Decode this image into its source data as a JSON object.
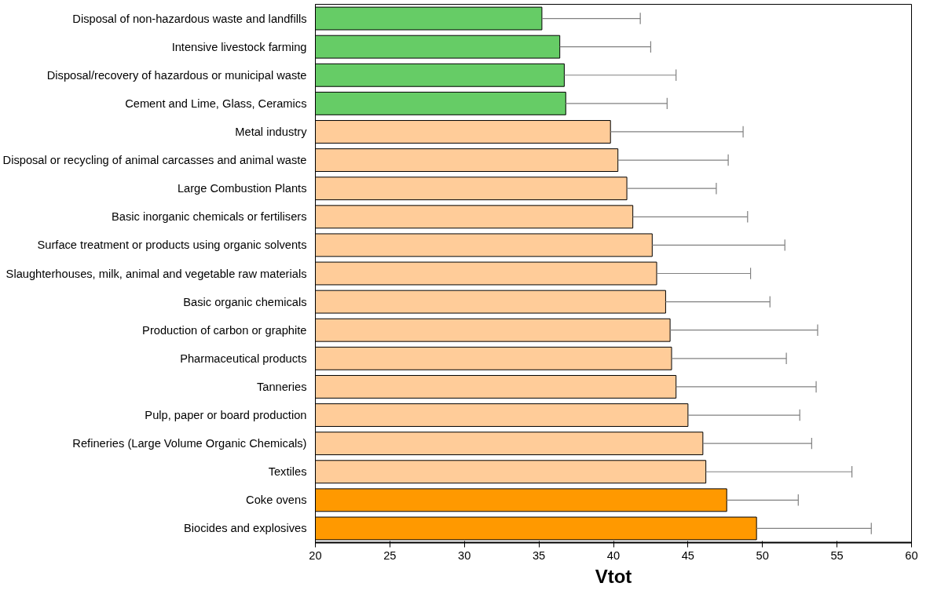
{
  "chart_data": {
    "type": "bar",
    "orientation": "horizontal",
    "xlabel": "Vtot",
    "categories": [
      "Disposal of non-hazardous waste and landfills",
      "Intensive livestock farming",
      "Disposal/recovery of hazardous or municipal waste",
      "Cement and Lime, Glass, Ceramics",
      "Metal industry",
      "Disposal or recycling of animal carcasses and animal waste",
      "Large Combustion Plants",
      "Basic inorganic chemicals or fertilisers",
      "Surface treatment or products using organic solvents",
      "Slaughterhouses, milk, animal and vegetable raw materials",
      "Basic organic chemicals",
      "Production of carbon or graphite",
      "Pharmaceutical products",
      "Tanneries",
      "Pulp, paper or board production",
      "Refineries (Large Volume Organic Chemicals)",
      "Textiles",
      "Coke ovens",
      "Biocides and explosives"
    ],
    "values": [
      35.2,
      36.4,
      36.7,
      36.8,
      39.8,
      40.3,
      40.9,
      41.3,
      42.6,
      42.9,
      43.5,
      43.8,
      43.9,
      44.2,
      45.0,
      46.0,
      46.2,
      47.6,
      49.6
    ],
    "errors": [
      [
        35.2,
        41.8
      ],
      [
        36.4,
        42.5
      ],
      [
        36.7,
        44.2
      ],
      [
        36.8,
        43.6
      ],
      [
        39.8,
        48.7
      ],
      [
        40.3,
        47.7
      ],
      [
        40.9,
        46.9
      ],
      [
        41.3,
        49.0
      ],
      [
        42.6,
        51.5
      ],
      [
        42.9,
        49.2
      ],
      [
        43.5,
        50.5
      ],
      [
        43.8,
        53.7
      ],
      [
        43.9,
        51.6
      ],
      [
        44.2,
        53.6
      ],
      [
        45.0,
        52.5
      ],
      [
        46.0,
        53.3
      ],
      [
        46.2,
        56.0
      ],
      [
        47.6,
        52.4
      ],
      [
        49.6,
        57.3
      ]
    ],
    "colors": [
      "#66cc66",
      "#66cc66",
      "#66cc66",
      "#66cc66",
      "#ffcc99",
      "#ffcc99",
      "#ffcc99",
      "#ffcc99",
      "#ffcc99",
      "#ffcc99",
      "#ffcc99",
      "#ffcc99",
      "#ffcc99",
      "#ffcc99",
      "#ffcc99",
      "#ffcc99",
      "#ffcc99",
      "#ff9900",
      "#ff9900"
    ],
    "xlim": [
      20,
      60
    ],
    "xticks": [
      20,
      25,
      30,
      35,
      40,
      45,
      50,
      55,
      60
    ],
    "grid": false
  }
}
